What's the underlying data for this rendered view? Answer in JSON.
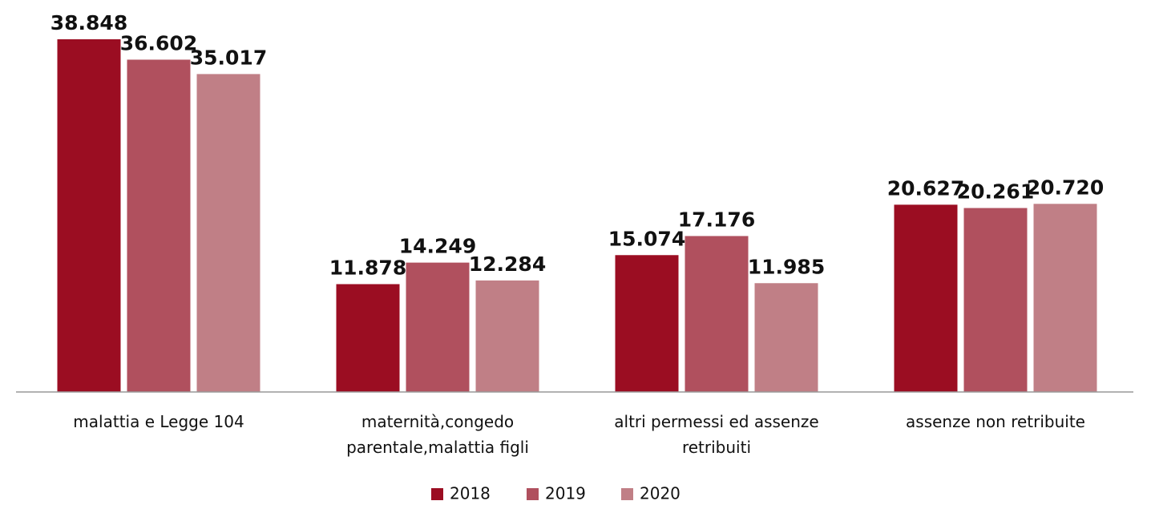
{
  "chart_data": {
    "type": "bar",
    "categories": [
      "malattia e Legge 104",
      "maternità,congedo parentale,malattia figli",
      "altri permessi ed assenze retribuiti",
      "assenze non retribuite"
    ],
    "series": [
      {
        "name": "2018",
        "color": "#9b0d22",
        "values": [
          38848,
          11878,
          15074,
          20627
        ],
        "value_labels": [
          "38.848",
          "11.878",
          "15.074",
          "20.627"
        ]
      },
      {
        "name": "2019",
        "color": "#b0505e",
        "values": [
          36602,
          14249,
          17176,
          20261
        ],
        "value_labels": [
          "36.602",
          "14.249",
          "17.176",
          "20.261"
        ]
      },
      {
        "name": "2020",
        "color": "#c07f86",
        "values": [
          35017,
          12284,
          11985,
          20720
        ],
        "value_labels": [
          "35.017",
          "12.284",
          "11.985",
          "20.720"
        ]
      }
    ],
    "legend": "bottom"
  }
}
